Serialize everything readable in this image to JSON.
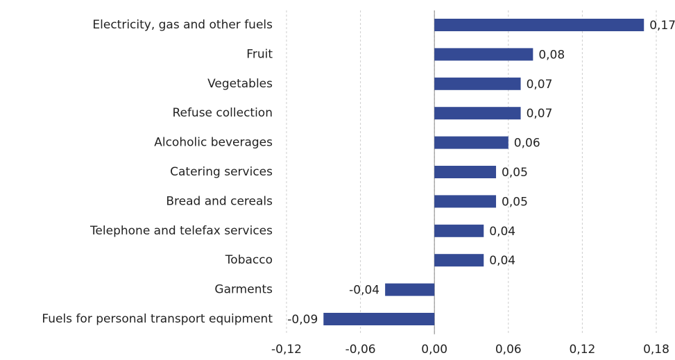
{
  "chart_data": {
    "type": "bar",
    "orientation": "horizontal",
    "categories": [
      "Electricity, gas and other fuels",
      "Fruit",
      "Vegetables",
      "Refuse collection",
      "Alcoholic beverages",
      "Catering services",
      "Bread and cereals",
      "Telephone and telefax services",
      "Tobacco",
      "Garments",
      "Fuels for personal transport equipment"
    ],
    "values": [
      0.17,
      0.08,
      0.07,
      0.07,
      0.06,
      0.05,
      0.05,
      0.04,
      0.04,
      -0.04,
      -0.09
    ],
    "value_labels": [
      "0,17",
      "0,08",
      "0,07",
      "0,07",
      "0,06",
      "0,05",
      "0,05",
      "0,04",
      "0,04",
      "-0,04",
      "-0,09"
    ],
    "color": "#344a94",
    "xlim": [
      -0.12,
      0.18
    ],
    "xticks": [
      {
        "value": -0.12,
        "label": "-0,12"
      },
      {
        "value": -0.06,
        "label": "-0,06"
      },
      {
        "value": 0,
        "label": "0,00"
      },
      {
        "value": 0.06,
        "label": "0,06"
      },
      {
        "value": 0.12,
        "label": "0,12"
      },
      {
        "value": 0.18,
        "label": "0,18"
      }
    ],
    "grid": true
  }
}
